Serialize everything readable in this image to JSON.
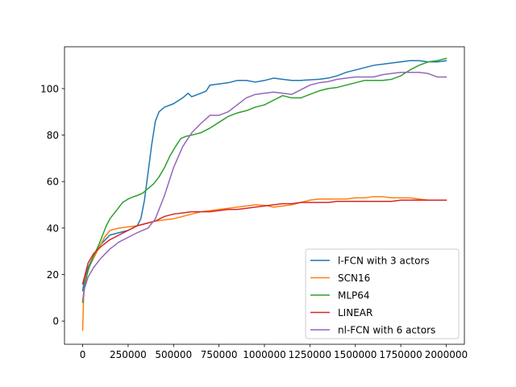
{
  "chart_data": {
    "type": "line",
    "title": "",
    "xlabel": "",
    "ylabel": "",
    "xlim": [
      -100000,
      2100000
    ],
    "ylim": [
      -10,
      118
    ],
    "x_ticks": [
      0,
      250000,
      500000,
      750000,
      1000000,
      1250000,
      1500000,
      1750000,
      2000000
    ],
    "x_tick_labels": [
      "0",
      "250000",
      "500000",
      "750000",
      "1000000",
      "1250000",
      "1500000",
      "1750000",
      "2000000"
    ],
    "y_ticks": [
      0,
      20,
      40,
      60,
      80,
      100
    ],
    "y_tick_labels": [
      "0",
      "20",
      "40",
      "60",
      "80",
      "100"
    ],
    "grid": false,
    "legend_position": "lower-right",
    "series": [
      {
        "name": "l-FCN with 3 actors",
        "color": "#1f77b4",
        "points": [
          [
            0,
            13
          ],
          [
            10000,
            18
          ],
          [
            30000,
            23
          ],
          [
            60000,
            28
          ],
          [
            100000,
            33
          ],
          [
            150000,
            37
          ],
          [
            200000,
            38
          ],
          [
            250000,
            39
          ],
          [
            300000,
            41
          ],
          [
            320000,
            44
          ],
          [
            340000,
            52
          ],
          [
            360000,
            64
          ],
          [
            380000,
            76
          ],
          [
            400000,
            86
          ],
          [
            420000,
            90
          ],
          [
            450000,
            92
          ],
          [
            500000,
            93.5
          ],
          [
            550000,
            96
          ],
          [
            580000,
            98
          ],
          [
            600000,
            96.5
          ],
          [
            650000,
            98
          ],
          [
            680000,
            99
          ],
          [
            700000,
            101.5
          ],
          [
            750000,
            102
          ],
          [
            800000,
            102.5
          ],
          [
            850000,
            103.5
          ],
          [
            900000,
            103.5
          ],
          [
            950000,
            102.8
          ],
          [
            1000000,
            103.5
          ],
          [
            1050000,
            104.5
          ],
          [
            1100000,
            104
          ],
          [
            1150000,
            103.5
          ],
          [
            1200000,
            103.5
          ],
          [
            1250000,
            103.8
          ],
          [
            1300000,
            104
          ],
          [
            1350000,
            104.5
          ],
          [
            1400000,
            105.5
          ],
          [
            1450000,
            107
          ],
          [
            1500000,
            108
          ],
          [
            1550000,
            109
          ],
          [
            1600000,
            110
          ],
          [
            1650000,
            110.5
          ],
          [
            1700000,
            111
          ],
          [
            1750000,
            111.5
          ],
          [
            1800000,
            112
          ],
          [
            1850000,
            112
          ],
          [
            1900000,
            111.5
          ],
          [
            1950000,
            111.5
          ],
          [
            2000000,
            112
          ]
        ]
      },
      {
        "name": "SCN16",
        "color": "#ff7f0e",
        "points": [
          [
            0,
            -4
          ],
          [
            5000,
            10
          ],
          [
            15000,
            18
          ],
          [
            40000,
            24
          ],
          [
            80000,
            30
          ],
          [
            120000,
            36
          ],
          [
            150000,
            39
          ],
          [
            200000,
            40
          ],
          [
            250000,
            40.5
          ],
          [
            300000,
            41
          ],
          [
            350000,
            42
          ],
          [
            400000,
            43
          ],
          [
            450000,
            43.5
          ],
          [
            500000,
            44
          ],
          [
            550000,
            45
          ],
          [
            600000,
            46
          ],
          [
            650000,
            47
          ],
          [
            700000,
            47.5
          ],
          [
            750000,
            48
          ],
          [
            800000,
            48.5
          ],
          [
            850000,
            49
          ],
          [
            900000,
            49.5
          ],
          [
            950000,
            50
          ],
          [
            1000000,
            49.8
          ],
          [
            1050000,
            49
          ],
          [
            1100000,
            49.5
          ],
          [
            1150000,
            50
          ],
          [
            1200000,
            51
          ],
          [
            1250000,
            52
          ],
          [
            1300000,
            52.5
          ],
          [
            1350000,
            52.5
          ],
          [
            1400000,
            52.5
          ],
          [
            1450000,
            52.5
          ],
          [
            1500000,
            53
          ],
          [
            1550000,
            53
          ],
          [
            1600000,
            53.5
          ],
          [
            1650000,
            53.5
          ],
          [
            1700000,
            53
          ],
          [
            1750000,
            53
          ],
          [
            1800000,
            53
          ],
          [
            1850000,
            52.5
          ],
          [
            1900000,
            52
          ],
          [
            1950000,
            52
          ],
          [
            2000000,
            52
          ]
        ]
      },
      {
        "name": "MLP64",
        "color": "#2ca02c",
        "points": [
          [
            0,
            8
          ],
          [
            10000,
            15
          ],
          [
            30000,
            22
          ],
          [
            60000,
            28
          ],
          [
            90000,
            33
          ],
          [
            110000,
            37
          ],
          [
            130000,
            41
          ],
          [
            150000,
            44
          ],
          [
            180000,
            47
          ],
          [
            200000,
            49
          ],
          [
            220000,
            51
          ],
          [
            250000,
            52.5
          ],
          [
            280000,
            53.5
          ],
          [
            300000,
            54
          ],
          [
            330000,
            55
          ],
          [
            360000,
            57
          ],
          [
            390000,
            59
          ],
          [
            420000,
            62
          ],
          [
            450000,
            66
          ],
          [
            480000,
            71
          ],
          [
            510000,
            75
          ],
          [
            540000,
            78.5
          ],
          [
            570000,
            79.5
          ],
          [
            600000,
            80
          ],
          [
            650000,
            81
          ],
          [
            700000,
            83
          ],
          [
            750000,
            85.5
          ],
          [
            800000,
            88
          ],
          [
            850000,
            89.5
          ],
          [
            900000,
            90.5
          ],
          [
            950000,
            92
          ],
          [
            1000000,
            93
          ],
          [
            1050000,
            95
          ],
          [
            1100000,
            97
          ],
          [
            1150000,
            96
          ],
          [
            1200000,
            96
          ],
          [
            1250000,
            97.5
          ],
          [
            1300000,
            99
          ],
          [
            1350000,
            100
          ],
          [
            1400000,
            100.5
          ],
          [
            1450000,
            101.5
          ],
          [
            1500000,
            102.5
          ],
          [
            1550000,
            103.5
          ],
          [
            1600000,
            103.5
          ],
          [
            1650000,
            103.5
          ],
          [
            1700000,
            104
          ],
          [
            1750000,
            105.5
          ],
          [
            1800000,
            108
          ],
          [
            1850000,
            110
          ],
          [
            1900000,
            111.5
          ],
          [
            1950000,
            112
          ],
          [
            2000000,
            113
          ]
        ]
      },
      {
        "name": "LINEAR",
        "color": "#d62728",
        "points": [
          [
            0,
            16
          ],
          [
            10000,
            19
          ],
          [
            30000,
            25
          ],
          [
            60000,
            29
          ],
          [
            100000,
            32
          ],
          [
            150000,
            35
          ],
          [
            200000,
            37
          ],
          [
            250000,
            39
          ],
          [
            300000,
            41
          ],
          [
            350000,
            42
          ],
          [
            400000,
            43
          ],
          [
            450000,
            45
          ],
          [
            500000,
            46
          ],
          [
            550000,
            46.5
          ],
          [
            600000,
            47
          ],
          [
            650000,
            47
          ],
          [
            700000,
            47
          ],
          [
            750000,
            47.5
          ],
          [
            800000,
            48
          ],
          [
            850000,
            48
          ],
          [
            900000,
            48.5
          ],
          [
            950000,
            49
          ],
          [
            1000000,
            49.5
          ],
          [
            1050000,
            50
          ],
          [
            1100000,
            50.5
          ],
          [
            1150000,
            50.5
          ],
          [
            1200000,
            51
          ],
          [
            1250000,
            51
          ],
          [
            1300000,
            51
          ],
          [
            1350000,
            51
          ],
          [
            1400000,
            51.5
          ],
          [
            1450000,
            51.5
          ],
          [
            1500000,
            51.5
          ],
          [
            1550000,
            51.5
          ],
          [
            1600000,
            51.5
          ],
          [
            1650000,
            51.5
          ],
          [
            1700000,
            51.5
          ],
          [
            1750000,
            52
          ],
          [
            1800000,
            52
          ],
          [
            1850000,
            52
          ],
          [
            1900000,
            52
          ],
          [
            1950000,
            52
          ],
          [
            2000000,
            52
          ]
        ]
      },
      {
        "name": "nl-FCN with 6 actors",
        "color": "#9467bd",
        "points": [
          [
            0,
            9
          ],
          [
            10000,
            14
          ],
          [
            30000,
            19
          ],
          [
            60000,
            23
          ],
          [
            100000,
            27
          ],
          [
            150000,
            31
          ],
          [
            200000,
            34
          ],
          [
            250000,
            36
          ],
          [
            300000,
            38
          ],
          [
            330000,
            39
          ],
          [
            360000,
            40
          ],
          [
            400000,
            44
          ],
          [
            450000,
            54
          ],
          [
            500000,
            66
          ],
          [
            550000,
            75
          ],
          [
            600000,
            81
          ],
          [
            650000,
            85
          ],
          [
            700000,
            88.5
          ],
          [
            750000,
            88.5
          ],
          [
            800000,
            90
          ],
          [
            850000,
            93
          ],
          [
            900000,
            96
          ],
          [
            950000,
            97.5
          ],
          [
            1000000,
            98
          ],
          [
            1050000,
            98.5
          ],
          [
            1100000,
            98
          ],
          [
            1150000,
            97.5
          ],
          [
            1200000,
            99.5
          ],
          [
            1250000,
            101.5
          ],
          [
            1300000,
            102.5
          ],
          [
            1350000,
            103
          ],
          [
            1400000,
            104
          ],
          [
            1450000,
            104.5
          ],
          [
            1500000,
            105
          ],
          [
            1550000,
            105
          ],
          [
            1600000,
            105
          ],
          [
            1650000,
            106
          ],
          [
            1700000,
            106.5
          ],
          [
            1750000,
            107
          ],
          [
            1800000,
            107
          ],
          [
            1850000,
            107
          ],
          [
            1900000,
            106.5
          ],
          [
            1950000,
            105
          ],
          [
            2000000,
            105
          ]
        ]
      }
    ]
  }
}
